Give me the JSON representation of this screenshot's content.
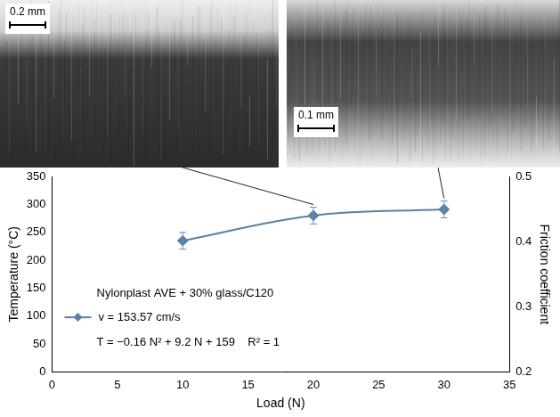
{
  "chart_data": {
    "type": "line",
    "micrographs": [
      {
        "scale_bar": "0.2 mm"
      },
      {
        "scale_bar": "0.1 mm"
      }
    ],
    "x_label": "Load (N)",
    "y_label": "Temperature (°C)",
    "y2_label": "Friction coefficient",
    "annotations": [
      "Nylonplast AVE + 30% glass/C120",
      "T = −0.16 N² + 9.2 N + 159    R² = 1"
    ],
    "x": [
      10,
      20,
      30
    ],
    "series": [
      {
        "name": "v = 153.57 cm/s",
        "color": "#5b80a5",
        "marker": "diamond",
        "line_style": "solid",
        "values": [
          235,
          280,
          291
        ],
        "error": [
          15,
          15,
          15
        ]
      }
    ],
    "xlim": [
      0,
      35
    ],
    "xticks": [
      0,
      5,
      10,
      15,
      20,
      25,
      30,
      35
    ],
    "ylim": [
      0,
      350
    ],
    "yticks": [
      0,
      50,
      100,
      150,
      200,
      250,
      300,
      350
    ],
    "y2lim": [
      0.2,
      0.5
    ],
    "y2ticks": [
      0.2,
      0.3,
      0.4,
      0.5
    ],
    "grid": false,
    "legend": "lower left"
  }
}
